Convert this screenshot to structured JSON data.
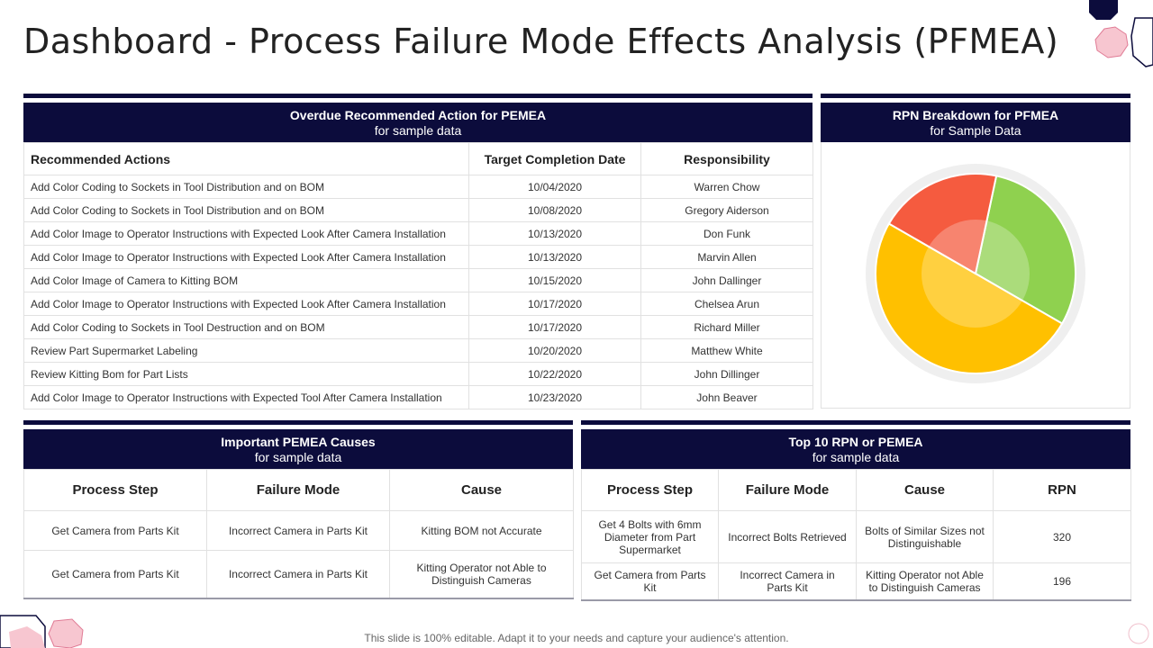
{
  "page": {
    "title": "Dashboard - Process Failure Mode Effects Analysis (PFMEA)",
    "footer": "This slide is 100% editable. Adapt it to your needs and capture your audience's attention."
  },
  "colors": {
    "header_navy": "#0c0c3c",
    "accent_pink": "#f7c6d0",
    "accent_navy": "#0c0c3c"
  },
  "overdue": {
    "title": "Overdue Recommended Action for PEMEA",
    "subtitle": "for sample data",
    "columns": [
      "Recommended Actions",
      "Target Completion Date",
      "Responsibility"
    ],
    "rows": [
      [
        "Add Color Coding to Sockets in Tool Distribution and on BOM",
        "10/04/2020",
        "Warren Chow"
      ],
      [
        "Add Color Coding to Sockets in Tool Distribution and on BOM",
        "10/08/2020",
        "Gregory Aiderson"
      ],
      [
        "Add Color Image to Operator Instructions with Expected Look After  Camera Installation",
        "10/13/2020",
        "Don Funk"
      ],
      [
        "Add Color Image to Operator Instructions with Expected Look After  Camera Installation",
        "10/13/2020",
        "Marvin Allen"
      ],
      [
        "Add Color Image of Camera to Kitting BOM",
        "10/15/2020",
        "John Dallinger"
      ],
      [
        "Add Color Image to Operator Instructions with Expected Look After  Camera Installation",
        "10/17/2020",
        "Chelsea Arun"
      ],
      [
        "Add Color Coding to Sockets in Tool Destruction and on BOM",
        "10/17/2020",
        "Richard Miller"
      ],
      [
        "Review Part Supermarket Labeling",
        "10/20/2020",
        "Matthew White"
      ],
      [
        "Review Kitting Bom for Part Lists",
        "10/22/2020",
        "John Dillinger"
      ],
      [
        "Add Color Image to Operator Instructions with Expected Tool After Camera Installation",
        "10/23/2020",
        "John Beaver"
      ]
    ]
  },
  "rpn": {
    "title": "RPN Breakdown for PFMEA",
    "subtitle": "for Sample Data"
  },
  "chart_data": {
    "type": "pie",
    "slices": [
      {
        "value": 30,
        "color": "#8fd14f"
      },
      {
        "value": 50,
        "color": "#ffc000"
      },
      {
        "value": 20,
        "color": "#f55b3f"
      }
    ],
    "start_angle_deg": 12
  },
  "causes": {
    "title": "Important PEMEA Causes",
    "subtitle": "for sample data",
    "columns": [
      "Process Step",
      "Failure Mode",
      "Cause"
    ],
    "rows": [
      [
        "Get Camera from Parts Kit",
        "Incorrect Camera in Parts Kit",
        "Kitting BOM not Accurate"
      ],
      [
        "Get Camera from Parts Kit",
        "Incorrect Camera in Parts Kit",
        "Kitting Operator not Able to Distinguish Cameras"
      ]
    ]
  },
  "top10": {
    "title": "Top 10 RPN or PEMEA",
    "subtitle": "for sample data",
    "columns": [
      "Process Step",
      "Failure Mode",
      "Cause",
      "RPN"
    ],
    "rows": [
      [
        "Get 4 Bolts with 6mm Diameter from Part Supermarket",
        "Incorrect Bolts Retrieved",
        "Bolts of Similar Sizes not Distinguishable",
        "320"
      ],
      [
        "Get Camera from Parts Kit",
        "Incorrect Camera in Parts Kit",
        "Kitting Operator not Able to Distinguish Cameras",
        "196"
      ]
    ]
  }
}
